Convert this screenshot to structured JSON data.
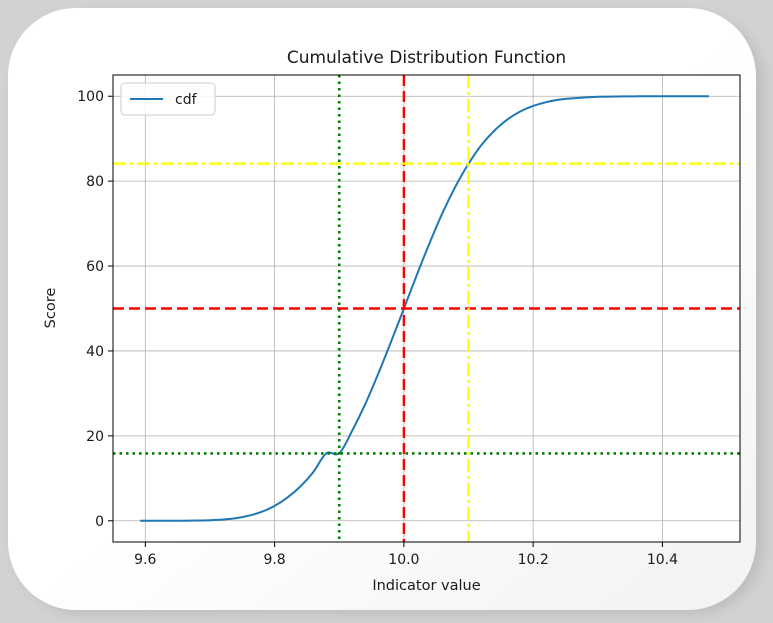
{
  "chart_data": {
    "type": "line",
    "title": "Cumulative Distribution Function",
    "xlabel": "Indicator value",
    "ylabel": "Score",
    "xlim": [
      9.55,
      10.52
    ],
    "ylim": [
      -5,
      105
    ],
    "grid": true,
    "legend_position": "top-left",
    "x_ticks": [
      {
        "value": 9.6,
        "label": "9.6"
      },
      {
        "value": 9.8,
        "label": "9.8"
      },
      {
        "value": 10.0,
        "label": "10.0"
      },
      {
        "value": 10.2,
        "label": "10.2"
      },
      {
        "value": 10.4,
        "label": "10.4"
      }
    ],
    "y_ticks": [
      {
        "value": 0,
        "label": "0"
      },
      {
        "value": 20,
        "label": "20"
      },
      {
        "value": 40,
        "label": "40"
      },
      {
        "value": 60,
        "label": "60"
      },
      {
        "value": 80,
        "label": "80"
      },
      {
        "value": 100,
        "label": "100"
      }
    ],
    "series": [
      {
        "name": "cdf",
        "color": "#1f77b4",
        "x": [
          9.592,
          9.62,
          9.65,
          9.68,
          9.7,
          9.72,
          9.74,
          9.76,
          9.78,
          9.8,
          9.82,
          9.84,
          9.86,
          9.88,
          9.9,
          9.92,
          9.94,
          9.96,
          9.98,
          10.0,
          10.02,
          10.04,
          10.06,
          10.08,
          10.1,
          10.12,
          10.14,
          10.16,
          10.18,
          10.2,
          10.22,
          10.24,
          10.26,
          10.28,
          10.3,
          10.33,
          10.36,
          10.4,
          10.44,
          10.472
        ],
        "y": [
          0.0,
          0.0,
          0.01,
          0.05,
          0.13,
          0.3,
          0.6,
          1.2,
          2.1,
          3.5,
          5.5,
          8.1,
          11.5,
          15.9,
          15.9,
          21.2,
          27.4,
          34.5,
          42.1,
          50.0,
          57.9,
          65.5,
          72.6,
          78.8,
          84.1,
          88.5,
          91.9,
          94.5,
          96.4,
          97.7,
          98.6,
          99.2,
          99.5,
          99.7,
          99.87,
          99.95,
          99.98,
          100.0,
          100.0,
          100.0
        ]
      }
    ],
    "reference_lines": [
      {
        "orientation": "vertical",
        "value": 9.9,
        "color": "#008000",
        "style": "dotted"
      },
      {
        "orientation": "horizontal",
        "value": 15.87,
        "color": "#008000",
        "style": "dotted"
      },
      {
        "orientation": "vertical",
        "value": 10.0,
        "color": "#ff0000",
        "style": "dashed"
      },
      {
        "orientation": "horizontal",
        "value": 50.0,
        "color": "#ff0000",
        "style": "dashed"
      },
      {
        "orientation": "vertical",
        "value": 10.1,
        "color": "#ffff00",
        "style": "dashdot"
      },
      {
        "orientation": "horizontal",
        "value": 84.13,
        "color": "#ffff00",
        "style": "dashdot"
      }
    ]
  }
}
